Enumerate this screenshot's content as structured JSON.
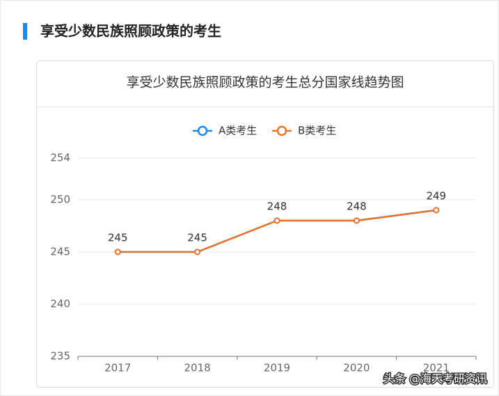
{
  "header": {
    "title": "享受少数民族照顾政策的考生"
  },
  "chart_data": {
    "type": "line",
    "title": "享受少数民族照顾政策的考生总分国家线趋势图",
    "categories": [
      "2017",
      "2018",
      "2019",
      "2020",
      "2021"
    ],
    "series": [
      {
        "name": "A类考生",
        "color": "#1e88e5",
        "values": [
          245,
          245,
          248,
          248,
          249
        ]
      },
      {
        "name": "B类考生",
        "color": "#e8732a",
        "values": [
          245,
          245,
          248,
          248,
          249
        ]
      }
    ],
    "ylim": [
      235,
      254
    ],
    "yticks": [
      235,
      240,
      245,
      250,
      254
    ],
    "grid": true,
    "legend": "top"
  },
  "watermark": "头条 @海天考研资讯"
}
